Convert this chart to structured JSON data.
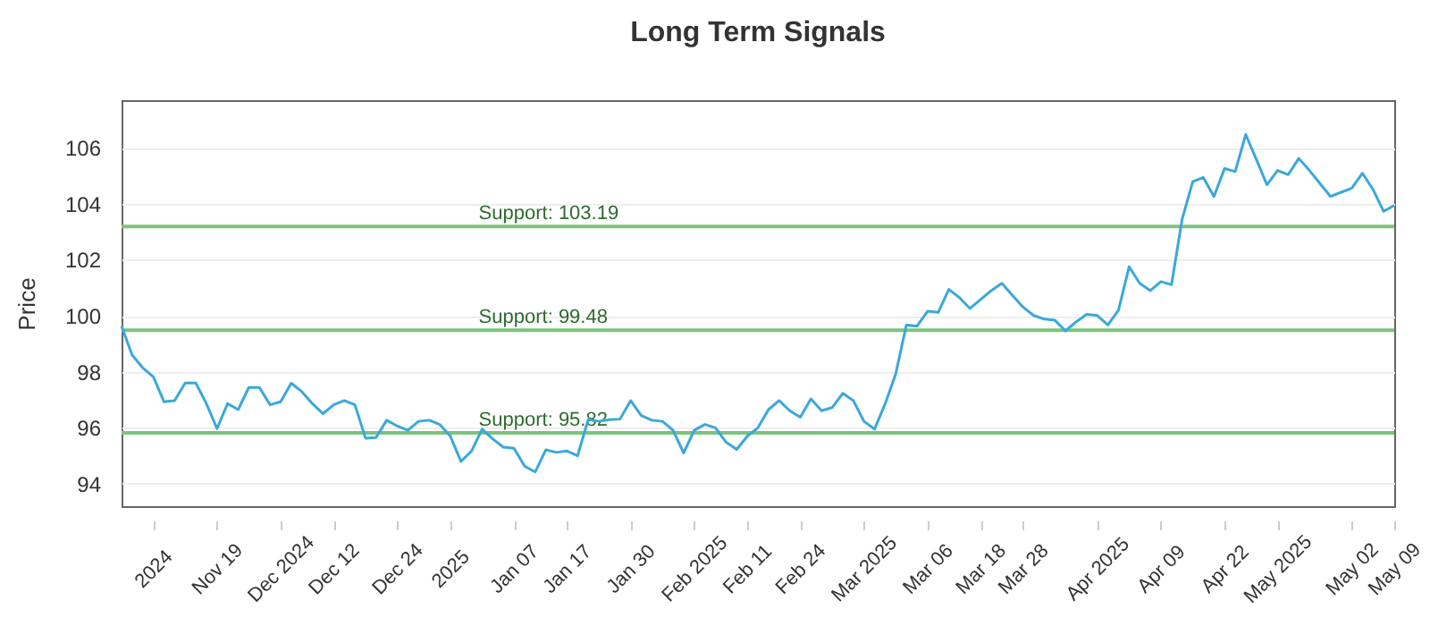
{
  "chart_data": {
    "type": "line",
    "title": "Long Term Signals",
    "ylabel": "Price",
    "categories": [
      null,
      null,
      null,
      "2024",
      null,
      null,
      null,
      null,
      null,
      "Nov 19",
      null,
      null,
      null,
      null,
      null,
      "Dec 2024",
      null,
      null,
      null,
      null,
      "Dec 12",
      null,
      null,
      null,
      null,
      null,
      "Dec 24",
      null,
      null,
      null,
      null,
      "2025",
      null,
      null,
      null,
      null,
      null,
      "Jan 07",
      null,
      null,
      null,
      null,
      "Jan 17",
      null,
      null,
      null,
      null,
      null,
      "Jan 30",
      null,
      null,
      null,
      null,
      null,
      "Feb 2025",
      null,
      null,
      null,
      null,
      "Feb 11",
      null,
      null,
      null,
      null,
      "Feb 24",
      null,
      null,
      null,
      null,
      null,
      "Mar 2025",
      null,
      null,
      null,
      null,
      null,
      "Mar 06",
      null,
      null,
      null,
      null,
      "Mar 18",
      null,
      null,
      null,
      "Mar 28",
      null,
      null,
      null,
      null,
      null,
      null,
      "Apr 2025",
      null,
      null,
      null,
      null,
      null,
      "Apr 09",
      null,
      null,
      null,
      null,
      null,
      "Apr 22",
      null,
      null,
      null,
      null,
      "May 2025",
      null,
      null,
      null,
      null,
      null,
      null,
      "May 02",
      null,
      null,
      null,
      "May 09"
    ],
    "series": [
      {
        "color": "#3aa8dc",
        "values": [
          99.63,
          98.6,
          98.14,
          97.82,
          96.93,
          96.97,
          97.6,
          97.6,
          96.86,
          95.97,
          96.86,
          96.65,
          97.44,
          97.44,
          96.82,
          96.93,
          97.59,
          97.29,
          96.86,
          96.5,
          96.82,
          96.97,
          96.82,
          95.63,
          95.65,
          96.27,
          96.06,
          95.91,
          96.23,
          96.27,
          96.12,
          95.7,
          94.8,
          95.17,
          95.95,
          95.6,
          95.31,
          95.27,
          94.63,
          94.42,
          95.21,
          95.12,
          95.17,
          95.0,
          96.29,
          96.23,
          96.29,
          96.31,
          96.97,
          96.44,
          96.27,
          96.23,
          95.91,
          95.1,
          95.91,
          96.12,
          96.0,
          95.48,
          95.23,
          95.7,
          96.0,
          96.65,
          96.97,
          96.61,
          96.38,
          97.03,
          96.61,
          96.72,
          97.23,
          96.97,
          96.23,
          95.95,
          96.86,
          97.93,
          99.67,
          99.63,
          100.16,
          100.12,
          100.94,
          100.65,
          100.26,
          100.58,
          100.9,
          101.16,
          100.73,
          100.31,
          100.01,
          99.88,
          99.84,
          99.46,
          99.78,
          100.05,
          100.01,
          99.67,
          100.2,
          101.75,
          101.16,
          100.9,
          101.22,
          101.11,
          103.45,
          104.79,
          104.94,
          104.26,
          105.26,
          105.15,
          106.47,
          105.58,
          104.68,
          105.19,
          105.04,
          105.62,
          105.19,
          104.72,
          104.26,
          104.41,
          104.56,
          105.09,
          104.51,
          103.73,
          103.94
        ]
      }
    ],
    "ylim": [
      93.2,
      107.7
    ],
    "yticks": [
      94,
      96,
      98,
      100,
      102,
      104,
      106
    ],
    "grid": "y",
    "marker": "none",
    "line_style": "solid",
    "ref_lines": [
      {
        "axis": "y",
        "value": 103.19,
        "label": "Support: 103.19",
        "color": "#7cc47c"
      },
      {
        "axis": "y",
        "value": 99.48,
        "label": "Support: 99.48",
        "color": "#7cc47c"
      },
      {
        "axis": "y",
        "value": 95.82,
        "label": "Support: 95.82",
        "color": "#7cc47c"
      }
    ]
  }
}
